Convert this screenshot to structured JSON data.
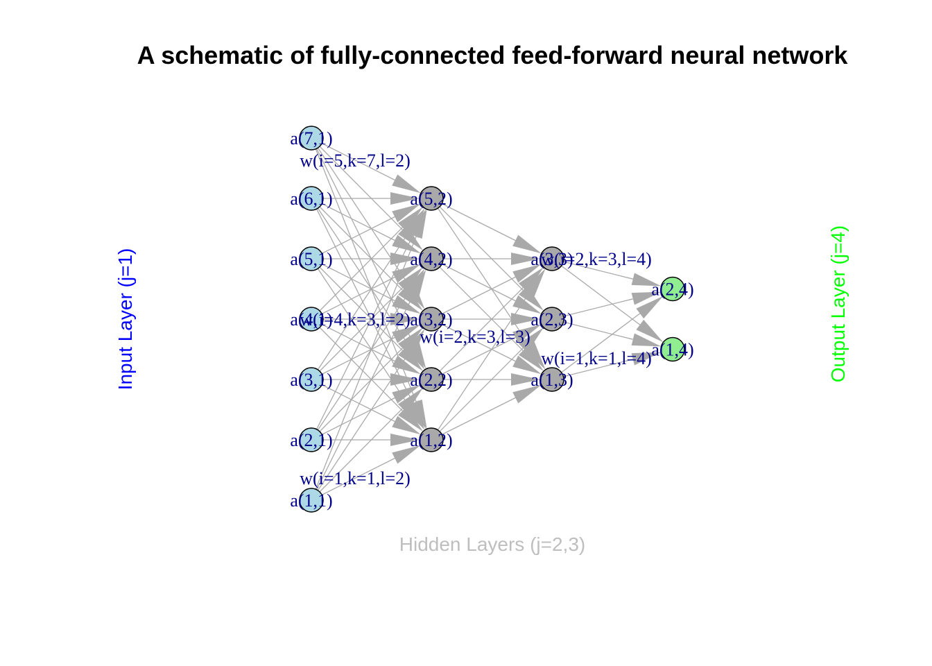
{
  "diagram": {
    "title": "A schematic of fully-connected feed-forward neural network",
    "input_label": "Input Layer (j=1)",
    "hidden_label": "Hidden Layers (j=2,3)",
    "output_label": "Output Layer (j=4)",
    "colors": {
      "input_node": "#add8e6",
      "hidden_node": "#a9a9a9",
      "output_node": "#90ee90",
      "edge": "#a9a9a9",
      "label_text": "#00008b",
      "input_label": "#0000ff",
      "hidden_label": "#bebebe",
      "output_label": "#00ff00"
    },
    "layers": [
      {
        "name": "input",
        "nodes": [
          "a(1,1)",
          "a(2,1)",
          "a(3,1)",
          "a(4,1)",
          "a(5,1)",
          "a(6,1)",
          "a(7,1)"
        ]
      },
      {
        "name": "hidden-1",
        "nodes": [
          "a(1,2)",
          "a(2,2)",
          "a(3,2)",
          "a(4,2)",
          "a(5,2)"
        ]
      },
      {
        "name": "hidden-2",
        "nodes": [
          "a(1,3)",
          "a(2,3)",
          "a(3,3)"
        ]
      },
      {
        "name": "output",
        "nodes": [
          "a(1,4)",
          "a(2,4)"
        ]
      }
    ],
    "weight_labels": [
      "w(i=5,k=7,l=2)",
      "w(i=1,k=1,l=2)",
      "w(i=4,k=3,l=2)",
      "w(i=2,k=3,l=3)",
      "w(i=1,k=1,l=4)",
      "w(i=2,k=3,l=4)"
    ]
  }
}
